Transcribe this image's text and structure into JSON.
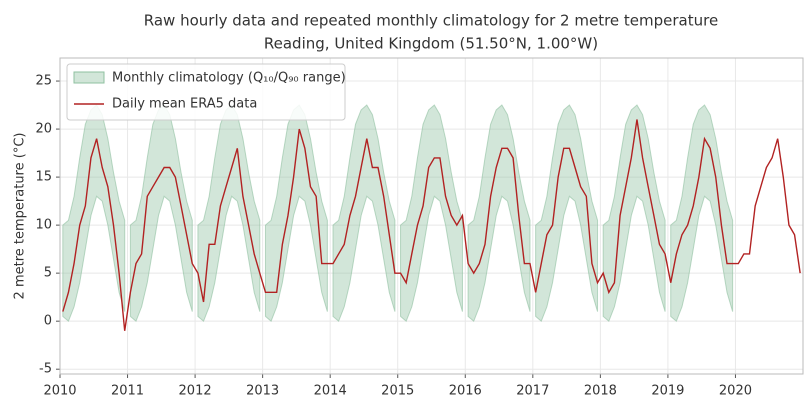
{
  "chart_data": {
    "type": "line",
    "title": "Raw hourly data and repeated monthly climatology for 2 metre temperature",
    "subtitle": "Reading, United Kingdom (51.50°N, 1.00°W)",
    "ylabel": "2 metre temperature (°C)",
    "xlim": [
      2010,
      2021
    ],
    "xticks": [
      2010,
      2011,
      2012,
      2013,
      2014,
      2015,
      2016,
      2017,
      2018,
      2019,
      2020
    ],
    "ylim": [
      -5.5,
      27.4
    ],
    "yticks": [
      -5,
      0,
      5,
      10,
      15,
      20,
      25
    ],
    "grid": true,
    "legend": "upper left",
    "climatology": {
      "name": "Monthly climatology (Q₁₀/Q₉₀ range)",
      "color": "#8fc0a0",
      "xrange": [
        2010,
        2020
      ],
      "q10": [
        0.5,
        0,
        1.5,
        4,
        7.5,
        11,
        13,
        12.5,
        10,
        6.5,
        3,
        1
      ],
      "q90": [
        10,
        10.5,
        13,
        17,
        20.5,
        22,
        22.5,
        21.5,
        19,
        15.5,
        12.5,
        10.5
      ]
    },
    "x": [
      2010.042,
      2010.125,
      2010.208,
      2010.292,
      2010.375,
      2010.458,
      2010.542,
      2010.625,
      2010.708,
      2010.792,
      2010.875,
      2010.958,
      2011.042,
      2011.125,
      2011.208,
      2011.292,
      2011.375,
      2011.458,
      2011.542,
      2011.625,
      2011.708,
      2011.792,
      2011.875,
      2011.958,
      2012.042,
      2012.125,
      2012.208,
      2012.292,
      2012.375,
      2012.458,
      2012.542,
      2012.625,
      2012.708,
      2012.792,
      2012.875,
      2012.958,
      2013.042,
      2013.125,
      2013.208,
      2013.292,
      2013.375,
      2013.458,
      2013.542,
      2013.625,
      2013.708,
      2013.792,
      2013.875,
      2013.958,
      2014.042,
      2014.125,
      2014.208,
      2014.292,
      2014.375,
      2014.458,
      2014.542,
      2014.625,
      2014.708,
      2014.792,
      2014.875,
      2014.958,
      2015.042,
      2015.125,
      2015.208,
      2015.292,
      2015.375,
      2015.458,
      2015.542,
      2015.625,
      2015.708,
      2015.792,
      2015.875,
      2015.958,
      2016.042,
      2016.125,
      2016.208,
      2016.292,
      2016.375,
      2016.458,
      2016.542,
      2016.625,
      2016.708,
      2016.792,
      2016.875,
      2016.958,
      2017.042,
      2017.125,
      2017.208,
      2017.292,
      2017.375,
      2017.458,
      2017.542,
      2017.625,
      2017.708,
      2017.792,
      2017.875,
      2017.958,
      2018.042,
      2018.125,
      2018.208,
      2018.292,
      2018.375,
      2018.458,
      2018.542,
      2018.625,
      2018.708,
      2018.792,
      2018.875,
      2018.958,
      2019.042,
      2019.125,
      2019.208,
      2019.292,
      2019.375,
      2019.458,
      2019.542,
      2019.625,
      2019.708,
      2019.792,
      2019.875,
      2019.958,
      2020.042,
      2020.125,
      2020.208,
      2020.292,
      2020.375,
      2020.458,
      2020.542,
      2020.625,
      2020.708,
      2020.792,
      2020.875,
      2020.958
    ],
    "series": [
      {
        "name": "Daily mean ERA5 data",
        "color": "#b22222",
        "values": [
          1,
          3,
          6,
          10,
          12,
          17,
          19,
          16,
          14,
          10,
          5,
          -1,
          3,
          6,
          7,
          13,
          14,
          15,
          16,
          16,
          15,
          12,
          9,
          6,
          5,
          2,
          8,
          8,
          12,
          14,
          16,
          18,
          13,
          10,
          7,
          5,
          3,
          3,
          3,
          8,
          11,
          15,
          20,
          18,
          14,
          13,
          6,
          6,
          6,
          7,
          8,
          11,
          13,
          16,
          19,
          16,
          16,
          13,
          9,
          5,
          5,
          4,
          7,
          10,
          12,
          16,
          17,
          17,
          13,
          11,
          10,
          11,
          6,
          5,
          6,
          8,
          13,
          16,
          18,
          18,
          17,
          11,
          6,
          6,
          3,
          6,
          9,
          10,
          15,
          18,
          18,
          16,
          14,
          13,
          6,
          4,
          5,
          3,
          4,
          11,
          14,
          17,
          21,
          17,
          14,
          11,
          8,
          7,
          4,
          7,
          9,
          10,
          12,
          15,
          19,
          18,
          15,
          10,
          6,
          6,
          6,
          7,
          7,
          12,
          14,
          16,
          17,
          19,
          15,
          10,
          9,
          5
        ]
      }
    ]
  }
}
